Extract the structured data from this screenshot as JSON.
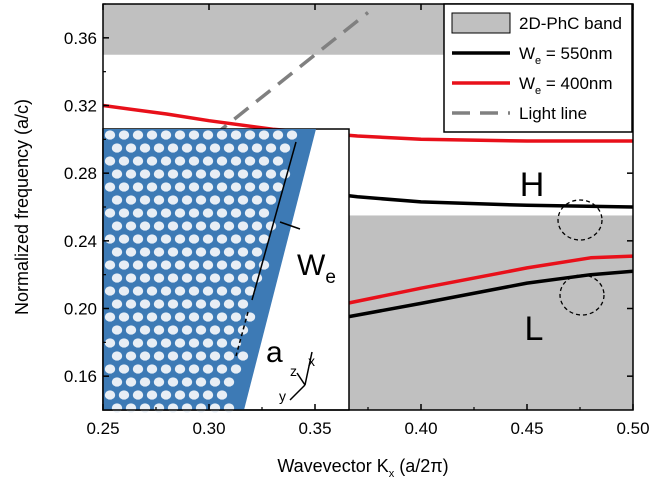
{
  "chart_data": {
    "type": "line",
    "xlabel": "Wavevector K",
    "xlabel_sub": "x",
    "xlabel_unit": " (a/2π)",
    "ylabel": "Normalized frequency (a/c)",
    "xlim": [
      0.25,
      0.5
    ],
    "ylim": [
      0.14,
      0.38
    ],
    "x_ticks": [
      "0.25",
      "0.30",
      "0.35",
      "0.40",
      "0.45",
      "0.50"
    ],
    "y_ticks": [
      "0.16",
      "0.20",
      "0.24",
      "0.28",
      "0.32",
      "0.36"
    ],
    "grid": false,
    "legend_position": "top-right",
    "bands": [
      {
        "name": "2D-PhC band",
        "color": "#c0c0c0",
        "ymin": 0.35,
        "ymax": 0.38
      },
      {
        "name": "2D-PhC band",
        "color": "#c0c0c0",
        "ymin": 0.14,
        "ymax": 0.255
      }
    ],
    "series": [
      {
        "name_main": "W",
        "name_sub": "e",
        "name_rest": " = 550nm",
        "color": "#000000",
        "dash": false,
        "x": [
          0.25,
          0.3,
          0.35,
          0.37,
          0.4,
          0.45,
          0.5
        ],
        "y": [
          0.278,
          0.274,
          0.269,
          0.266,
          0.263,
          0.261,
          0.26
        ]
      },
      {
        "name_main": "W",
        "name_sub": "e",
        "name_rest": " = 400nm",
        "color": "#e8101a",
        "dash": false,
        "x": [
          0.25,
          0.28,
          0.3,
          0.33,
          0.37,
          0.4,
          0.45,
          0.5
        ],
        "y": [
          0.32,
          0.315,
          0.311,
          0.306,
          0.302,
          0.3,
          0.299,
          0.299
        ]
      },
      {
        "name_main": "W",
        "name_sub": "e",
        "name_rest": " = 400nm",
        "color": "#e8101a",
        "dash": false,
        "x": [
          0.365,
          0.4,
          0.45,
          0.48,
          0.5
        ],
        "y": [
          0.203,
          0.212,
          0.224,
          0.23,
          0.231
        ]
      },
      {
        "name_main": "W",
        "name_sub": "e",
        "name_rest": " = 550nm",
        "color": "#000000",
        "dash": false,
        "x": [
          0.365,
          0.4,
          0.45,
          0.48,
          0.5
        ],
        "y": [
          0.195,
          0.203,
          0.215,
          0.22,
          0.222
        ]
      },
      {
        "name_main": "Light line",
        "name_sub": "",
        "name_rest": "",
        "color": "#808080",
        "dash": true,
        "x": [
          0.25,
          0.375
        ],
        "y": [
          0.25,
          0.375
        ]
      }
    ],
    "legend": [
      {
        "type": "patch",
        "color": "#c0c0c0",
        "main": "2D-PhC band",
        "sub": "",
        "rest": ""
      },
      {
        "type": "line",
        "color": "#000000",
        "dash": false,
        "main": "W",
        "sub": "e",
        "rest": " = 550nm"
      },
      {
        "type": "line",
        "color": "#e8101a",
        "dash": false,
        "main": "W",
        "sub": "e",
        "rest": " = 400nm"
      },
      {
        "type": "line",
        "color": "#808080",
        "dash": true,
        "main": "Light line",
        "sub": "",
        "rest": ""
      }
    ],
    "annotations": {
      "H": "H",
      "L": "L",
      "We_main": "W",
      "We_sub": "e",
      "a": "a",
      "axis_z": "z",
      "axis_x": "x",
      "axis_y": "y"
    }
  }
}
